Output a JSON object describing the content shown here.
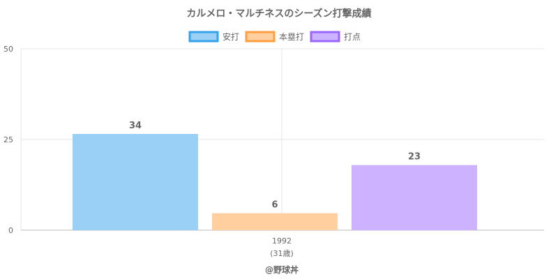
{
  "chart_data": {
    "type": "bar",
    "title": "カルメロ・マルチネスのシーズン打撃成績",
    "categories": [
      "1992"
    ],
    "category_sublabels": [
      "(31歳)"
    ],
    "series": [
      {
        "name": "安打",
        "values": [
          34
        ],
        "color": "#9ad0f5",
        "border": "#36a2eb"
      },
      {
        "name": "本塁打",
        "values": [
          6
        ],
        "color": "#ffcf9f",
        "border": "#ff9f40"
      },
      {
        "name": "打点",
        "values": [
          23
        ],
        "color": "#ccb2ff",
        "border": "#9966ff"
      }
    ],
    "y_ticks": [
      0,
      25,
      50
    ],
    "grid": true,
    "legend_position": "top"
  },
  "footer": "@野球丼"
}
